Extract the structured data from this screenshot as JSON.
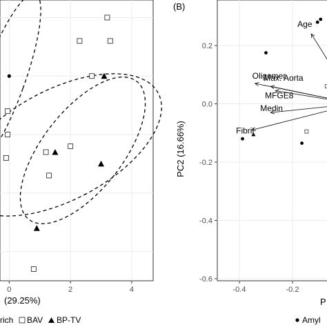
{
  "chart_data": [
    {
      "type": "scatter",
      "panel": "A",
      "xlabel_visible": "(29.25%)",
      "xlim": [
        -0.3,
        4.7
      ],
      "ylim": [
        -0.5,
        4.3
      ],
      "x_ticks": [
        "0",
        "2",
        "4"
      ],
      "x_tick_values": [
        0,
        2,
        4
      ],
      "legend": {
        "entries": [
          "rich",
          "BAV",
          "BP-TV"
        ]
      },
      "points": [
        {
          "group": "BAV",
          "x": 3.2,
          "y": 4.0
        },
        {
          "group": "BAV",
          "x": 2.3,
          "y": 3.6
        },
        {
          "group": "BAV",
          "x": 3.3,
          "y": 3.6
        },
        {
          "group": "BAV",
          "x": 2.7,
          "y": 3.0
        },
        {
          "group": "BAV",
          "x": -0.05,
          "y": 2.4
        },
        {
          "group": "BAV",
          "x": -0.05,
          "y": 2.0
        },
        {
          "group": "BAV",
          "x": -0.1,
          "y": 1.6
        },
        {
          "group": "BAV",
          "x": 1.2,
          "y": 1.7
        },
        {
          "group": "BAV",
          "x": 2.0,
          "y": 1.8
        },
        {
          "group": "BAV",
          "x": 1.3,
          "y": 1.3
        },
        {
          "group": "BAV",
          "x": 0.8,
          "y": -0.3
        },
        {
          "group": "rich",
          "x": 0.0,
          "y": 3.0
        },
        {
          "group": "BP-TV",
          "x": 3.1,
          "y": 3.0
        },
        {
          "group": "BP-TV",
          "x": 1.5,
          "y": 1.7
        },
        {
          "group": "BP-TV",
          "x": 3.0,
          "y": 1.5
        },
        {
          "group": "BP-TV",
          "x": 0.9,
          "y": 0.4
        }
      ]
    },
    {
      "type": "scatter",
      "panel": "B",
      "panel_label": "(B)",
      "ylabel": "PC2 (16.66%)",
      "xlabel_visible": "P",
      "xlim": [
        -0.4,
        0.0
      ],
      "ylim": [
        -0.6,
        0.33
      ],
      "x_ticks": [
        "-0.4",
        "-0.2"
      ],
      "x_tick_values": [
        -0.37,
        -0.2
      ],
      "y_ticks": [
        "0.2",
        "0.0",
        "-0.2",
        "-0.4",
        "-0.6"
      ],
      "y_tick_values": [
        0.2,
        0.0,
        -0.2,
        -0.4,
        -0.6
      ],
      "legend": {
        "entries": [
          "Amyl"
        ]
      },
      "points": [
        {
          "group": "Amyl",
          "x": -0.12,
          "y": 0.28
        },
        {
          "group": "Amyl",
          "x": -0.11,
          "y": 0.29
        },
        {
          "group": "Amyl",
          "x": -0.285,
          "y": 0.175
        },
        {
          "group": "Amyl",
          "x": -0.36,
          "y": -0.12
        },
        {
          "group": "Amyl",
          "x": -0.17,
          "y": -0.135
        },
        {
          "group": "BAV",
          "x": -0.09,
          "y": 0.06
        },
        {
          "group": "BAV",
          "x": -0.155,
          "y": -0.095
        },
        {
          "group": "BP-TV",
          "x": -0.325,
          "y": -0.105
        }
      ],
      "loadings": [
        {
          "label": "Age",
          "x": -0.14,
          "y": 0.24
        },
        {
          "label": "Oligomer",
          "x": -0.32,
          "y": 0.07
        },
        {
          "label": "Max. Aorta",
          "x": -0.27,
          "y": 0.06
        },
        {
          "label": "MFGE8",
          "x": -0.255,
          "y": 0.045
        },
        {
          "label": "Medin",
          "x": -0.27,
          "y": -0.03
        },
        {
          "label": "Fibril",
          "x": -0.33,
          "y": -0.09
        }
      ],
      "loading_origin": {
        "x": 0.0,
        "y": 0.0
      }
    }
  ]
}
